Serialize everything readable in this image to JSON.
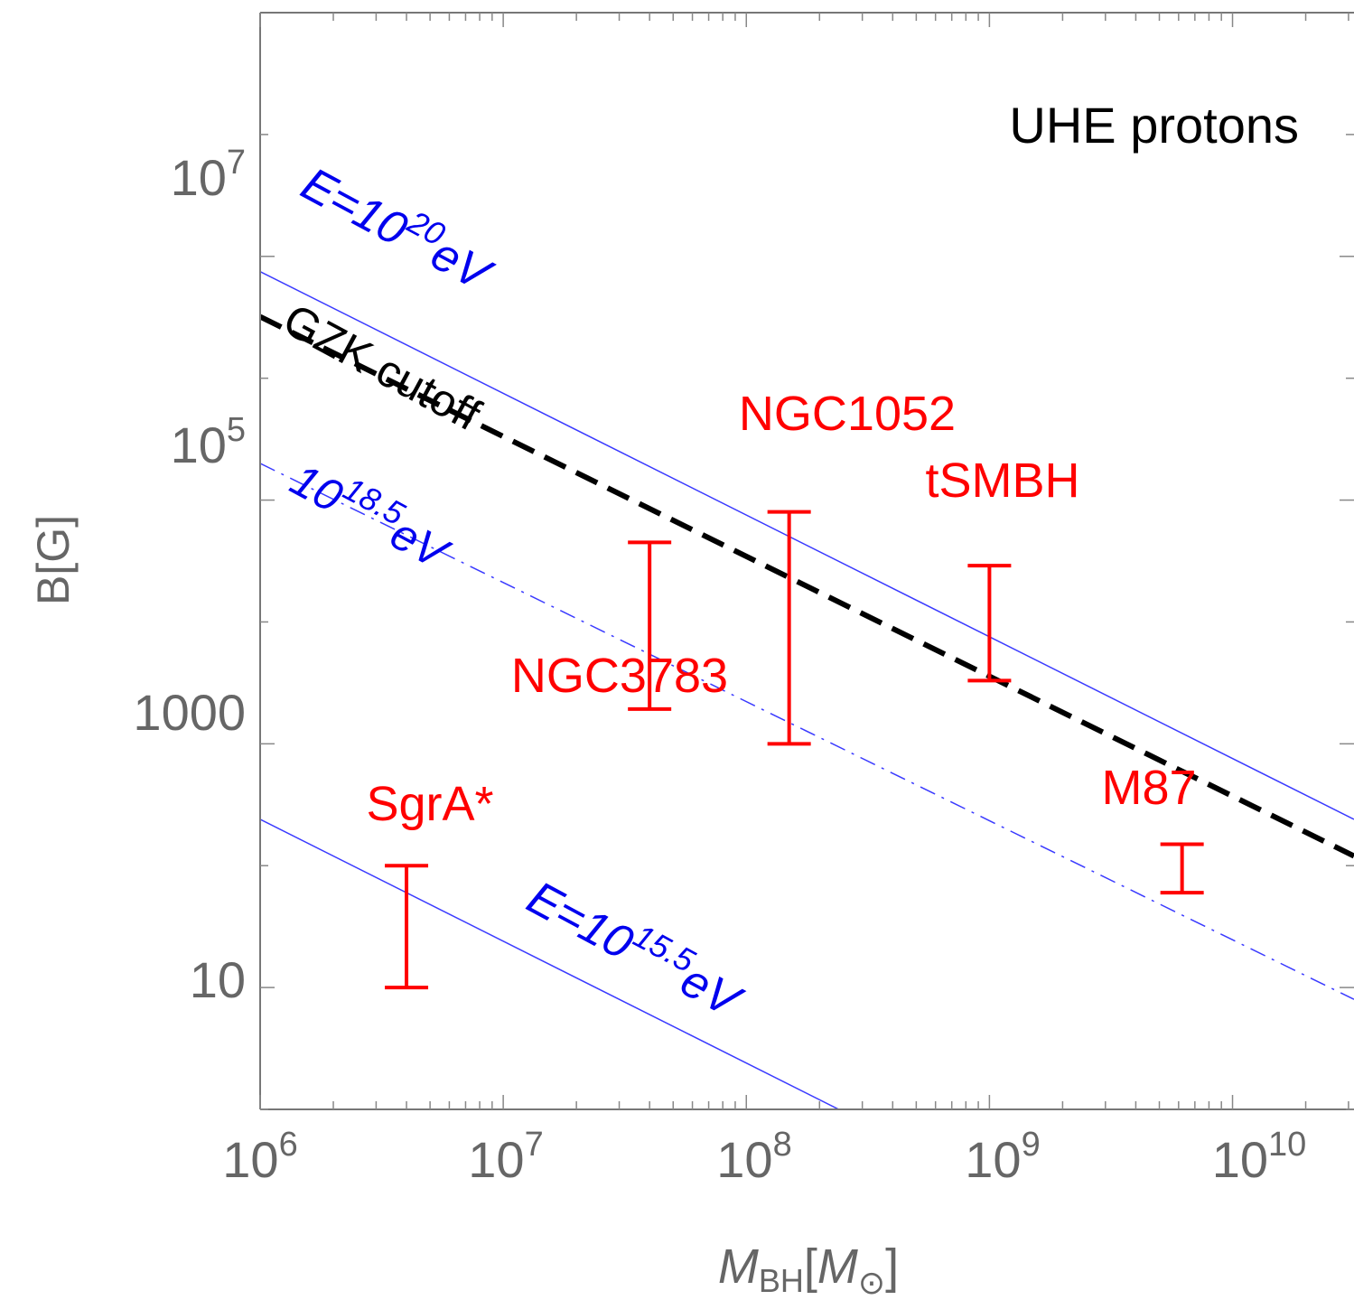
{
  "chart_data": {
    "type": "line",
    "x_scale": "log",
    "y_scale": "log",
    "xlim": [
      1000000.0,
      31600000000.0
    ],
    "ylim": [
      1,
      1000000000.0
    ],
    "x_ticks": [
      {
        "value": 1000000.0,
        "base": "10",
        "exp": "6"
      },
      {
        "value": 10000000.0,
        "base": "10",
        "exp": "7"
      },
      {
        "value": 100000000.0,
        "base": "10",
        "exp": "8"
      },
      {
        "value": 1000000000.0,
        "base": "10",
        "exp": "9"
      },
      {
        "value": 10000000000.0,
        "base": "10",
        "exp": "10"
      }
    ],
    "y_ticks": [
      {
        "value": 10,
        "base": "10",
        "exp": ""
      },
      {
        "value": 1000,
        "base": "1000",
        "exp": ""
      },
      {
        "value": 100000.0,
        "base": "10",
        "exp": "5"
      },
      {
        "value": 10000000.0,
        "base": "10",
        "exp": "7"
      }
    ],
    "xlabel": {
      "main": "M",
      "sub": "BH",
      "bracket_open": "[",
      "unit_main": "M",
      "unit_sub": "⊙",
      "bracket_close": "]"
    },
    "ylabel": "B[G]",
    "annotation": "UHE protons",
    "grid": false,
    "series": [
      {
        "name": "E=10^20eV",
        "style": "solid",
        "color": "#3a3aff",
        "x": [
          1000000.0,
          31600000000.0
        ],
        "y": [
          7500000.0,
          240
        ]
      },
      {
        "name": "GZK cutoff",
        "style": "dashed",
        "color": "#000000",
        "x": [
          1000000.0,
          31600000000.0
        ],
        "y": [
          3200000.0,
          120
        ]
      },
      {
        "name": "10^18.5eV",
        "style": "dashdot",
        "color": "#3a3aff",
        "x": [
          1000000.0,
          31600000000.0
        ],
        "y": [
          200000.0,
          8
        ]
      },
      {
        "name": "E=10^15.5eV",
        "style": "solid",
        "color": "#3a3aff",
        "x": [
          1000000.0,
          240000000.0
        ],
        "y": [
          240,
          1
        ]
      }
    ],
    "series_labels": [
      {
        "series": "E=10^20eV",
        "prefix": "E=10",
        "sup": "20",
        "suffix": "eV",
        "color": "#0000ee"
      },
      {
        "series": "GZK cutoff",
        "prefix": "GZK cutoff",
        "sup": "",
        "suffix": "",
        "color": "#000000"
      },
      {
        "series": "10^18.5eV",
        "prefix": "10",
        "sup": "18.5",
        "suffix": "eV",
        "color": "#0000ee"
      },
      {
        "series": "E=10^15.5eV",
        "prefix": "E=10",
        "sup": "15.5",
        "suffix": "eV",
        "color": "#0000ee"
      }
    ],
    "error_bars": [
      {
        "name": "SgrA*",
        "x": 4000000.0,
        "y_low": 10,
        "y_high": 100
      },
      {
        "name": "NGC3783",
        "x": 40000000.0,
        "y_low": 1930,
        "y_high": 45000.0
      },
      {
        "name": "NGC1052",
        "x": 150000000.0,
        "y_low": 1000,
        "y_high": 80000.0
      },
      {
        "name": "tSMBH",
        "x": 1000000000.0,
        "y_low": 3300,
        "y_high": 29000.0
      },
      {
        "name": "M87",
        "x": 6200000000.0,
        "y_low": 60,
        "y_high": 150
      }
    ],
    "error_bar_color": "#ff0000"
  }
}
